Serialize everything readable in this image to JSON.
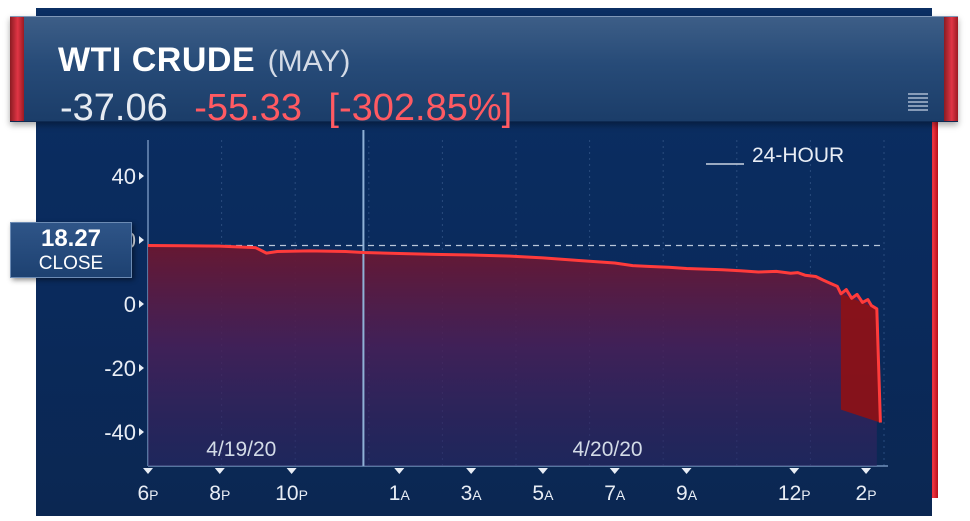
{
  "header": {
    "title": "WTI CRUDE",
    "contract": "(MAY)",
    "price": "-37.06",
    "change": "-55.33",
    "change_pct": "[-302.85%]"
  },
  "close_marker": {
    "value": "18.27",
    "label": "CLOSE"
  },
  "colors": {
    "accent_red": "#ef3340",
    "negative": "#ff5a62",
    "background": "#0b2f63"
  },
  "chart_data": {
    "type": "area",
    "range_label": "24-HOUR",
    "date_labels": [
      "4/19/20",
      "4/20/20"
    ],
    "ylim": [
      -50,
      50
    ],
    "yticks": [
      40,
      20,
      0,
      -20,
      -40
    ],
    "ytick_labels": [
      "40",
      "20",
      "0",
      "-20",
      "-40"
    ],
    "xlim": [
      0,
      20.5
    ],
    "xticks": [
      {
        "h": 0,
        "num": "6",
        "suf": "P"
      },
      {
        "h": 2,
        "num": "8",
        "suf": "P"
      },
      {
        "h": 4,
        "num": "10",
        "suf": "P"
      },
      {
        "h": 7,
        "num": "1",
        "suf": "A"
      },
      {
        "h": 9,
        "num": "3",
        "suf": "A"
      },
      {
        "h": 11,
        "num": "5",
        "suf": "A"
      },
      {
        "h": 13,
        "num": "7",
        "suf": "A"
      },
      {
        "h": 15,
        "num": "9",
        "suf": "A"
      },
      {
        "h": 18,
        "num": "12",
        "suf": "P"
      },
      {
        "h": 20,
        "num": "2",
        "suf": "P"
      }
    ],
    "reference_close": 18.27,
    "series": [
      {
        "x": [
          0,
          1,
          2,
          3,
          3.3,
          3.6,
          4.5,
          5.5,
          6,
          7,
          8,
          9,
          10,
          11,
          12,
          13,
          13.5,
          14,
          14.5,
          15,
          15.5,
          16,
          16.5,
          17,
          17.5,
          17.9,
          18.1,
          18.3,
          18.6,
          18.8,
          19,
          19.2,
          19.3,
          19.45,
          19.6,
          19.75,
          19.9,
          20.05,
          20.15,
          20.3,
          20.4
        ],
        "y": [
          18.3,
          18.2,
          18.1,
          17.6,
          15.9,
          16.4,
          16.6,
          16.4,
          16.1,
          15.8,
          15.5,
          15.3,
          15.0,
          14.4,
          13.6,
          12.8,
          12.0,
          11.7,
          11.5,
          11.1,
          10.9,
          10.7,
          10.4,
          10.0,
          10.2,
          9.6,
          9.8,
          9.0,
          8.6,
          7.5,
          6.5,
          5.5,
          3.2,
          4.5,
          1.8,
          3.0,
          0.5,
          1.4,
          -0.5,
          -1.5,
          -37.06
        ]
      }
    ]
  }
}
